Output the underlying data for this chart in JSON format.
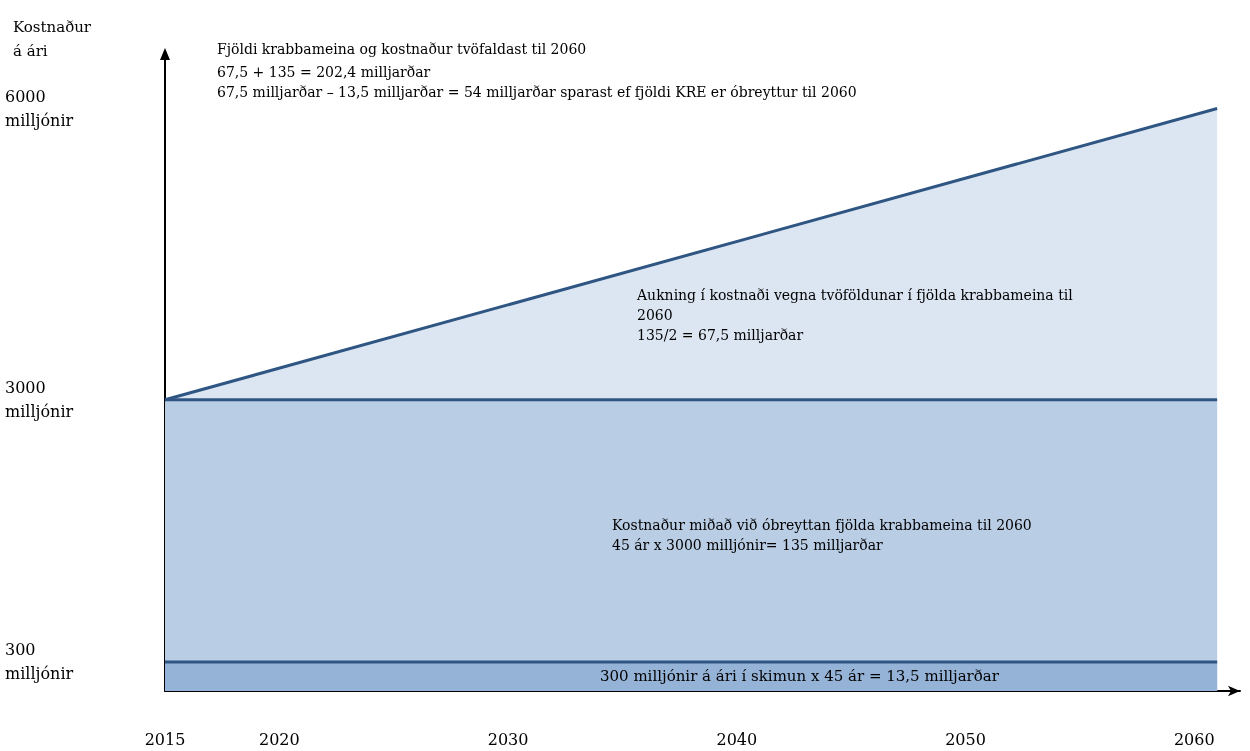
{
  "chart_data": {
    "type": "area",
    "title": "Fjöldi krabbameina og kostnaður tvöfaldast til 2060",
    "subtitle": "67,5 + 135 = 202,4 milljarðar\n67,5 milljarðar – 13,5 milljarðar = 54 milljarðar sparast ef fjöldi KRE er óbreyttur til 2060",
    "ylabel": "Kostnaður\ná ári",
    "xlim": [
      2015,
      2062
    ],
    "xticks": [
      2015,
      2020,
      2030,
      2040,
      2050,
      2060
    ],
    "ylim": [
      0,
      6500
    ],
    "yticks": [
      {
        "value": 300,
        "label": "300\nmilljónir"
      },
      {
        "value": 3000,
        "label": "3000\nmilljónir"
      },
      {
        "value": 6000,
        "label": "6000\nmilljónir"
      }
    ],
    "x": [
      2015,
      2061
    ],
    "series": [
      {
        "color": "#dce6f2",
        "values": [
          3000,
          6000
        ]
      },
      {
        "color": "#b9cde5",
        "values": [
          3000,
          3000
        ]
      },
      {
        "color": "#95b3d7",
        "values": [
          300,
          300
        ]
      }
    ],
    "annotations": [
      "Aukning í kostnaði vegna tvöföldunar í fjölda krabbameina til\n2060\n135/2 = 67,5 milljarðar",
      "Kostnaður miðað við óbreyttan fjölda krabbameina til 2060\n45 ár x 3000 milljónir= 135 milljarðar",
      "300 milljónir á ári í skimun x 45 ár = 13,5 milljarðar"
    ]
  }
}
